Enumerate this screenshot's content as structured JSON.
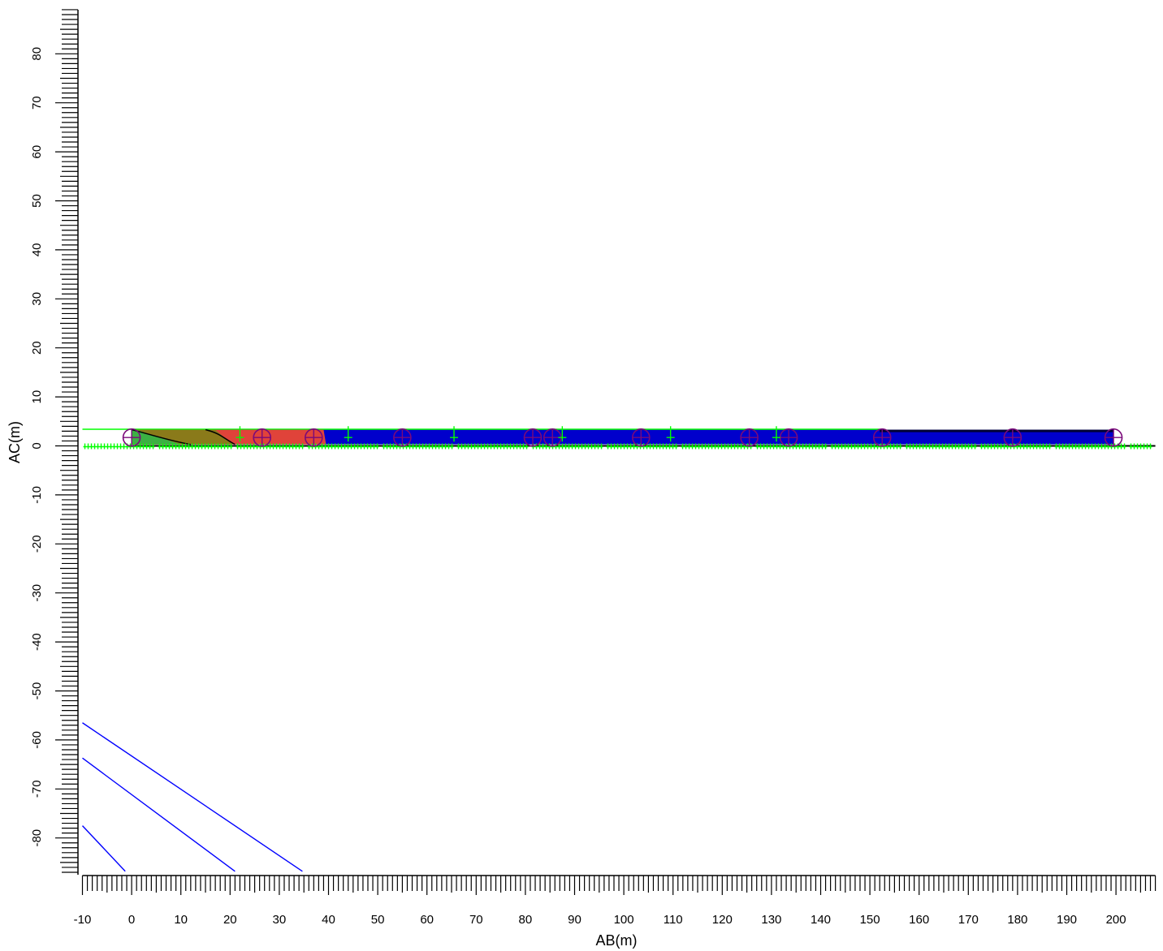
{
  "chart_data": {
    "type": "cross-section",
    "xlabel": "AB(m)",
    "ylabel": "AC(m)",
    "xlim": [
      -10,
      208
    ],
    "ylim": [
      -87.5,
      89
    ],
    "x_ticks": [
      -10,
      0,
      10,
      20,
      30,
      40,
      50,
      60,
      70,
      80,
      90,
      100,
      110,
      120,
      130,
      140,
      150,
      160,
      170,
      180,
      190,
      200
    ],
    "y_ticks": [
      80,
      70,
      60,
      50,
      40,
      30,
      20,
      10,
      0,
      -10,
      -20,
      -30,
      -40,
      -50,
      -60,
      -70,
      -80
    ],
    "colors": {
      "section_fill": "#0000cc",
      "zone_green": "#3cb043",
      "zone_olive": "#8a7a1a",
      "zone_red": "#e0433a",
      "marker_circle": "#7a0a7a",
      "marker_plus": "#00ff00",
      "blue_lines": "#0000ff",
      "ground_line": "#000000"
    },
    "section_band": {
      "x_start": 0,
      "x_end": 199.5,
      "y_bottom": 0.3,
      "y_top": 3.3
    },
    "surface_line": {
      "x_start": -10,
      "x_end": 152,
      "y": 3.4
    },
    "ground_line": {
      "x_start": 0,
      "x_end": 208,
      "y": 0
    },
    "circle_markers_x": [
      0,
      26.5,
      37,
      55,
      81.5,
      85.5,
      103.5,
      125.5,
      133.5,
      152.5,
      179,
      199.5
    ],
    "circle_markers_y": 1.7,
    "plus_markers_x": [
      22,
      44,
      65.5,
      87.5,
      109.5,
      131
    ],
    "plus_markers_y": 1.7,
    "blue_lines": [
      {
        "x1": -10,
        "y1": -56.5,
        "x2": 34.7,
        "y2": -86.8
      },
      {
        "x1": -10,
        "y1": -63.7,
        "x2": 21,
        "y2": -86.8
      },
      {
        "x1": -10,
        "y1": -77.5,
        "x2": -1.3,
        "y2": -86.8
      }
    ]
  }
}
